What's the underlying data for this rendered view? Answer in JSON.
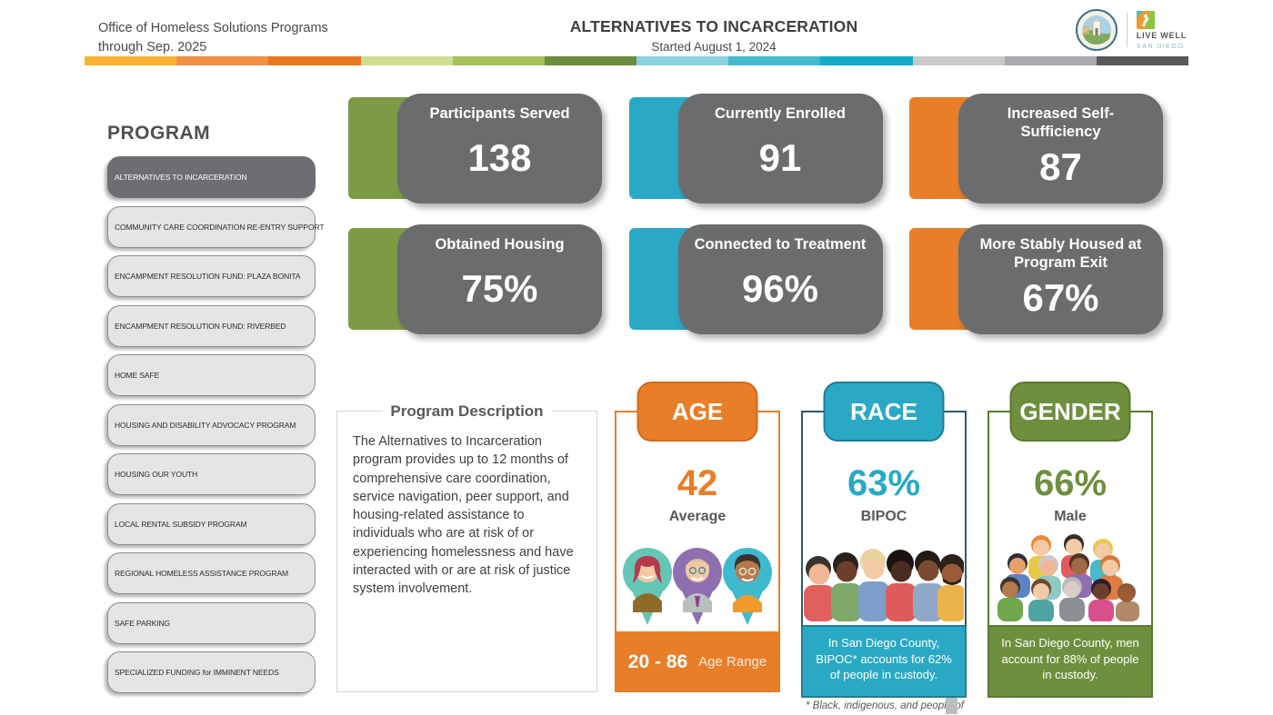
{
  "header": {
    "left_line1": "Office of Homeless Solutions Programs",
    "left_line2": "through Sep. 2025",
    "title": "ALTERNATIVES TO INCARCERATION",
    "subtitle": "Started August 1, 2024",
    "live_well_line1": "LIVE WELL",
    "live_well_line2": "SAN DIEGO"
  },
  "stripe_colors": [
    "#F9B233",
    "#F09044",
    "#E87722",
    "#CCDF92",
    "#A3C05B",
    "#6C8C3E",
    "#8BD2DF",
    "#45B8CB",
    "#14ABC6",
    "#C8C9CB",
    "#A8AAAD",
    "#58595B"
  ],
  "sidebar": {
    "heading": "PROGRAM",
    "items": [
      {
        "label": "ALTERNATIVES TO INCARCERATION",
        "selected": true
      },
      {
        "label": "COMMUNITY CARE COORDINATION RE-ENTRY SUPPORT",
        "selected": false
      },
      {
        "label": "ENCAMPMENT RESOLUTION FUND: PLAZA BONITA",
        "selected": false
      },
      {
        "label": "ENCAMPMENT RESOLUTION FUND: RIVERBED",
        "selected": false
      },
      {
        "label": "HOME SAFE",
        "selected": false
      },
      {
        "label": "HOUSING AND DISABILITY ADVOCACY PROGRAM",
        "selected": false
      },
      {
        "label": "HOUSING OUR YOUTH",
        "selected": false
      },
      {
        "label": "LOCAL RENTAL SUBSIDY PROGRAM",
        "selected": false
      },
      {
        "label": "REGIONAL HOMELESS ASSISTANCE PROGRAM",
        "selected": false
      },
      {
        "label": "SAFE PARKING",
        "selected": false
      },
      {
        "label": "SPECIALIZED FUNDING for IMMINENT NEEDS",
        "selected": false
      }
    ]
  },
  "stats": [
    {
      "label": "Participants Served",
      "value": "138",
      "accent": "#7C9B44"
    },
    {
      "label": "Currently Enrolled",
      "value": "91",
      "accent": "#29A9C5"
    },
    {
      "label": "Increased Self-Sufficiency",
      "value": "87",
      "accent": "#E87E27"
    },
    {
      "label": "Obtained Housing",
      "value": "75%",
      "accent": "#7C9B44"
    },
    {
      "label": "Connected to Treatment",
      "value": "96%",
      "accent": "#29A9C5"
    },
    {
      "label": "More Stably Housed at Program Exit",
      "value": "67%",
      "accent": "#E87E27"
    }
  ],
  "description": {
    "title": "Program Description",
    "body": "The Alternatives to Incarceration program provides up to 12 months of comprehensive care coordination, service navigation, peer support, and housing-related assistance to individuals who are at risk of or experiencing homelessness and have interacted with or are at risk of justice system involvement."
  },
  "demographics": [
    {
      "title": "AGE",
      "value": "42",
      "value_label": "Average",
      "footer_strong": "20 - 86",
      "footer_label": "Age Range",
      "color": "#E87E27"
    },
    {
      "title": "RACE",
      "value": "63%",
      "value_label": "BIPOC",
      "footer_text": "In San Diego County, BIPOC* accounts for 62% of people in custody.",
      "color": "#29A9C5"
    },
    {
      "title": "GENDER",
      "value": "66%",
      "value_label": "Male",
      "footer_text": "In San Diego County, men account for 88% of people in custody.",
      "color": "#6E8F3D"
    }
  ],
  "footnote": "* Black, indigenous, and people of",
  "colors": {
    "card_gray": "#6B6C6E",
    "race_border": "#2D5A6B",
    "olive": "#6E8F3D",
    "orange": "#E87E27",
    "teal": "#29A9C5",
    "green": "#7C9B44"
  }
}
